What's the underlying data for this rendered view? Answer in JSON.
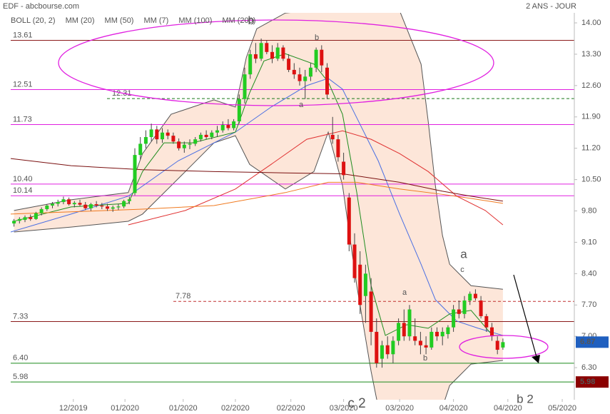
{
  "chart_data": {
    "type": "candlestick",
    "title": "EDF - abcbourse.com",
    "subtitle": "2 ANS - JOUR",
    "ylim": [
      5.6,
      14.2
    ],
    "yticks": [
      {
        "value": 14,
        "label": "14.00"
      },
      {
        "value": 13.3,
        "label": "13.30"
      },
      {
        "value": 12.6,
        "label": "12.60"
      },
      {
        "value": 11.9,
        "label": "11.90"
      },
      {
        "value": 11.2,
        "label": "11.20"
      },
      {
        "value": 10.5,
        "label": "10.50"
      },
      {
        "value": 9.8,
        "label": "9.80"
      },
      {
        "value": 9.1,
        "label": "9.10"
      },
      {
        "value": 8.4,
        "label": "8.40"
      },
      {
        "value": 7.7,
        "label": "7.70"
      },
      {
        "value": 7,
        "label": "7.00"
      },
      {
        "value": 6.3,
        "label": "6.30"
      }
    ],
    "xlim": [
      0,
      102.6
    ],
    "xticks": [
      {
        "value": 11.4,
        "label": "12/2019"
      },
      {
        "value": 20.8,
        "label": "01/2020"
      },
      {
        "value": 31.4,
        "label": "01/2020"
      },
      {
        "value": 40.9,
        "label": "02/2020"
      },
      {
        "value": 51,
        "label": "02/2020"
      },
      {
        "value": 60.6,
        "label": "03/2020"
      },
      {
        "value": 70.8,
        "label": "03/2020"
      },
      {
        "value": 80.6,
        "label": "04/2020"
      },
      {
        "value": 90.5,
        "label": "04/2020"
      },
      {
        "value": 100.4,
        "label": "05/2020"
      }
    ],
    "up_color": "#22cc22",
    "down_color": "#dd1111",
    "candles": [
      [
        9.52,
        9.62,
        9.45,
        9.58
      ],
      [
        9.58,
        9.66,
        9.52,
        9.62
      ],
      [
        9.6,
        9.7,
        9.55,
        9.66
      ],
      [
        9.66,
        9.72,
        9.58,
        9.62
      ],
      [
        9.62,
        9.78,
        9.6,
        9.75
      ],
      [
        9.75,
        9.88,
        9.7,
        9.84
      ],
      [
        9.84,
        9.95,
        9.8,
        9.92
      ],
      [
        9.92,
        10,
        9.86,
        9.96
      ],
      [
        9.96,
        10.05,
        9.9,
        10
      ],
      [
        10,
        10.12,
        9.95,
        10.06
      ],
      [
        10.06,
        10.1,
        9.92,
        9.95
      ],
      [
        9.95,
        10.02,
        9.88,
        9.98
      ],
      [
        9.98,
        10.05,
        9.9,
        9.94
      ],
      [
        9.94,
        10,
        9.82,
        9.86
      ],
      [
        9.86,
        9.98,
        9.8,
        9.95
      ],
      [
        9.95,
        10.02,
        9.88,
        9.92
      ],
      [
        9.92,
        9.98,
        9.84,
        9.9
      ],
      [
        9.9,
        9.96,
        9.8,
        9.85
      ],
      [
        9.85,
        9.92,
        9.78,
        9.88
      ],
      [
        9.88,
        9.96,
        9.82,
        9.9
      ],
      [
        9.9,
        10.05,
        9.86,
        10.02
      ],
      [
        10.02,
        10.12,
        9.95,
        10.06
      ],
      [
        10.2,
        11.2,
        10.15,
        11.05
      ],
      [
        11.05,
        11.45,
        10.95,
        11.3
      ],
      [
        11.3,
        11.6,
        11.2,
        11.45
      ],
      [
        11.45,
        11.75,
        11.35,
        11.62
      ],
      [
        11.62,
        11.7,
        11.3,
        11.4
      ],
      [
        11.4,
        11.65,
        11.32,
        11.55
      ],
      [
        11.55,
        11.62,
        11.4,
        11.48
      ],
      [
        11.48,
        11.55,
        11.3,
        11.35
      ],
      [
        11.35,
        11.42,
        11.15,
        11.2
      ],
      [
        11.2,
        11.35,
        11.1,
        11.28
      ],
      [
        11.28,
        11.4,
        11.18,
        11.3
      ],
      [
        11.3,
        11.45,
        11.25,
        11.4
      ],
      [
        11.4,
        11.55,
        11.35,
        11.5
      ],
      [
        11.5,
        11.6,
        11.4,
        11.45
      ],
      [
        11.45,
        11.6,
        11.4,
        11.55
      ],
      [
        11.55,
        11.7,
        11.45,
        11.6
      ],
      [
        11.6,
        11.8,
        11.55,
        11.72
      ],
      [
        11.72,
        11.85,
        11.6,
        11.65
      ],
      [
        11.65,
        11.85,
        11.6,
        11.8
      ],
      [
        11.8,
        12.4,
        11.75,
        12.3
      ],
      [
        12.3,
        13,
        12.2,
        12.85
      ],
      [
        12.85,
        13.4,
        12.75,
        13.3
      ],
      [
        13.3,
        13.55,
        13.1,
        13.2
      ],
      [
        13.2,
        13.65,
        13.15,
        13.55
      ],
      [
        13.55,
        13.6,
        13.3,
        13.35
      ],
      [
        13.35,
        13.5,
        13.1,
        13.2
      ],
      [
        13.2,
        13.55,
        13.15,
        13.45
      ],
      [
        13.45,
        13.5,
        13.15,
        13.2
      ],
      [
        13.2,
        13.3,
        12.9,
        12.95
      ],
      [
        12.95,
        13.1,
        12.75,
        12.85
      ],
      [
        12.85,
        13,
        12.6,
        12.7
      ],
      [
        12.7,
        12.95,
        12.3,
        12.8
      ],
      [
        12.8,
        13.1,
        12.7,
        13
      ],
      [
        13,
        13.45,
        12.9,
        13.4
      ],
      [
        13.4,
        13.5,
        12.9,
        13.05
      ],
      [
        13,
        13.1,
        12.3,
        12.4
      ],
      [
        11.5,
        11.9,
        11.3,
        11.4
      ],
      [
        11.4,
        11.5,
        10.9,
        11
      ],
      [
        10.9,
        11.1,
        10.5,
        10.6
      ],
      [
        10.1,
        10.2,
        8.9,
        9.05
      ],
      [
        9.05,
        9.3,
        8.2,
        8.3
      ],
      [
        8.6,
        8.9,
        7.5,
        7.7
      ],
      [
        7.9,
        8.6,
        7.3,
        8.4
      ],
      [
        8,
        8.3,
        6.8,
        7.1
      ],
      [
        7.1,
        7.4,
        6.3,
        6.4
      ],
      [
        6.5,
        6.9,
        6.3,
        6.8
      ],
      [
        6.8,
        7,
        6.5,
        6.6
      ],
      [
        6.6,
        7,
        6.4,
        6.9
      ],
      [
        6.9,
        7.4,
        6.8,
        7.3
      ],
      [
        7.3,
        7.6,
        6.9,
        7
      ],
      [
        7,
        7.7,
        6.9,
        7.6
      ],
      [
        7,
        7.4,
        6.8,
        6.9
      ],
      [
        6.9,
        7.1,
        6.6,
        6.8
      ],
      [
        6.8,
        7,
        6.6,
        6.75
      ],
      [
        6.75,
        7.2,
        6.7,
        7.1
      ],
      [
        7.1,
        7.2,
        6.9,
        7
      ],
      [
        7,
        7.2,
        6.8,
        7.1
      ],
      [
        7.05,
        7.25,
        6.95,
        7.2
      ],
      [
        7.2,
        7.7,
        7.1,
        7.6
      ],
      [
        7.6,
        7.8,
        7.4,
        7.5
      ],
      [
        7.5,
        7.9,
        7.4,
        7.8
      ],
      [
        7.8,
        8,
        7.7,
        7.95
      ],
      [
        7.95,
        8.05,
        7.8,
        7.85
      ],
      [
        7.8,
        7.9,
        7.4,
        7.45
      ],
      [
        7.45,
        7.5,
        7.1,
        7.2
      ],
      [
        7.2,
        7.3,
        6.9,
        7
      ],
      [
        6.9,
        7,
        6.6,
        6.7
      ],
      [
        6.75,
        6.95,
        6.7,
        6.87
      ]
    ],
    "bollinger": {
      "name": "BOLL (20, 2)",
      "color": "#555555",
      "fill": "#fde6d9",
      "upper": {
        "x": [
          0.6,
          11,
          21.4,
          24,
          29.2,
          37,
          40.9,
          42.9,
          44.8,
          50,
          60.4,
          70.8,
          74.7,
          76,
          77.3,
          78.6,
          79.9,
          83.8,
          89.6
        ],
        "values": [
          9.81,
          10.05,
          10.21,
          11.08,
          11.96,
          12.28,
          12.12,
          13.23,
          13.87,
          14.22,
          14.35,
          14.27,
          13.08,
          11.8,
          10.37,
          9.25,
          8.61,
          8.13,
          8.05
        ]
      },
      "lower": {
        "x": [
          0.6,
          11,
          21.4,
          24,
          31.8,
          37,
          40.9,
          43.5,
          50,
          55.2,
          57.8,
          60.4,
          63,
          65.6,
          66.9,
          78.6,
          79.9,
          83.8,
          89.6
        ],
        "values": [
          9.33,
          9.44,
          9.57,
          9.73,
          10.68,
          11.32,
          11.48,
          10.84,
          10.29,
          10.68,
          11.56,
          10.37,
          8.13,
          6.22,
          5.42,
          5.42,
          5.9,
          6.38,
          6.46
        ]
      }
    },
    "series": [
      {
        "name": "MM (20)",
        "color": "#4a6fe3",
        "x": [
          0,
          11,
          21.4,
          30.5,
          40.9,
          47.4,
          53.9,
          57.8,
          60.4,
          63,
          66.9,
          70.8,
          74.7,
          77.3,
          81.2,
          85.1,
          89.6
        ],
        "values": [
          9.33,
          9.73,
          10.13,
          10.92,
          11.56,
          12.12,
          12.6,
          12.76,
          12.52,
          11.88,
          10.92,
          9.73,
          8.61,
          7.82,
          7.34,
          7.18,
          7.02
        ]
      },
      {
        "name": "MM (50)",
        "color": "#e03030",
        "x": [
          21.4,
          31.8,
          40.9,
          47.4,
          53.9,
          60.4,
          65.6,
          70.8,
          76,
          81.2,
          86.4,
          89.6
        ],
        "values": [
          9.49,
          9.81,
          10.29,
          10.84,
          11.4,
          11.59,
          11.4,
          11.08,
          10.68,
          10.13,
          9.81,
          9.49
        ]
      },
      {
        "name": "MM (7)",
        "color": "#1e8c1e",
        "x": [
          0.6,
          11,
          21.4,
          24,
          27.9,
          33.1,
          40.9,
          43.5,
          46.1,
          50,
          55.2,
          57.8,
          60.4,
          63,
          65.6,
          68.2,
          72.1,
          76,
          79.9,
          83.8,
          87.7,
          89.6
        ],
        "values": [
          9.57,
          9.89,
          9.97,
          10.68,
          11.32,
          11.32,
          11.56,
          12.44,
          13.15,
          13.31,
          13.08,
          12.68,
          11.96,
          10.21,
          8.13,
          7.02,
          7.26,
          7.18,
          7.5,
          7.58,
          7.02,
          7.02
        ]
      },
      {
        "name": "MM (100)",
        "color": "#f07a20",
        "x": [
          0,
          11,
          24,
          37,
          50,
          57.8,
          63,
          70.8,
          78.6,
          83.8,
          89.6
        ],
        "values": [
          9.73,
          9.78,
          9.84,
          9.92,
          10.21,
          10.44,
          10.44,
          10.29,
          10.17,
          10.08,
          9.97
        ]
      },
      {
        "name": "MM (200)",
        "color": "#7a1010",
        "x": [
          0,
          11,
          24,
          37,
          50,
          60.4,
          70.8,
          78.6,
          83.8,
          89.6
        ],
        "values": [
          10.97,
          10.81,
          10.72,
          10.68,
          10.65,
          10.63,
          10.44,
          10.24,
          10.13,
          10.02
        ]
      }
    ],
    "levels": [
      {
        "value": 13.61,
        "label": "13.61",
        "color": "#8b1a1a"
      },
      {
        "value": 12.51,
        "label": "12.51",
        "color": "#e020e0"
      },
      {
        "value": 12.31,
        "label": "12.31",
        "color": "#1a7a1a",
        "dashed": true
      },
      {
        "value": 11.73,
        "label": "11.73",
        "color": "#e020e0"
      },
      {
        "value": 10.4,
        "label": "10.40",
        "color": "#e020e0"
      },
      {
        "value": 10.14,
        "label": "10.14",
        "color": "#e020e0"
      },
      {
        "value": 7.78,
        "label": "7.78",
        "color": "#c03030",
        "dashed": true
      },
      {
        "value": 7.33,
        "label": "7.33",
        "color": "#8b1a1a"
      },
      {
        "value": 6.4,
        "label": "6.40",
        "color": "#1a8a1a"
      },
      {
        "value": 5.98,
        "label": "5.98",
        "color": "#1a8a1a"
      }
    ],
    "price_tags": [
      {
        "value": 6.87,
        "label": "6.87",
        "color": "#1f5fbf"
      },
      {
        "value": 5.98,
        "label": "5.98",
        "color": "#8b0000"
      }
    ],
    "annotations": [
      "b",
      "b",
      "a",
      "a",
      "b",
      "c",
      "a",
      "c 2",
      "b 2"
    ]
  }
}
